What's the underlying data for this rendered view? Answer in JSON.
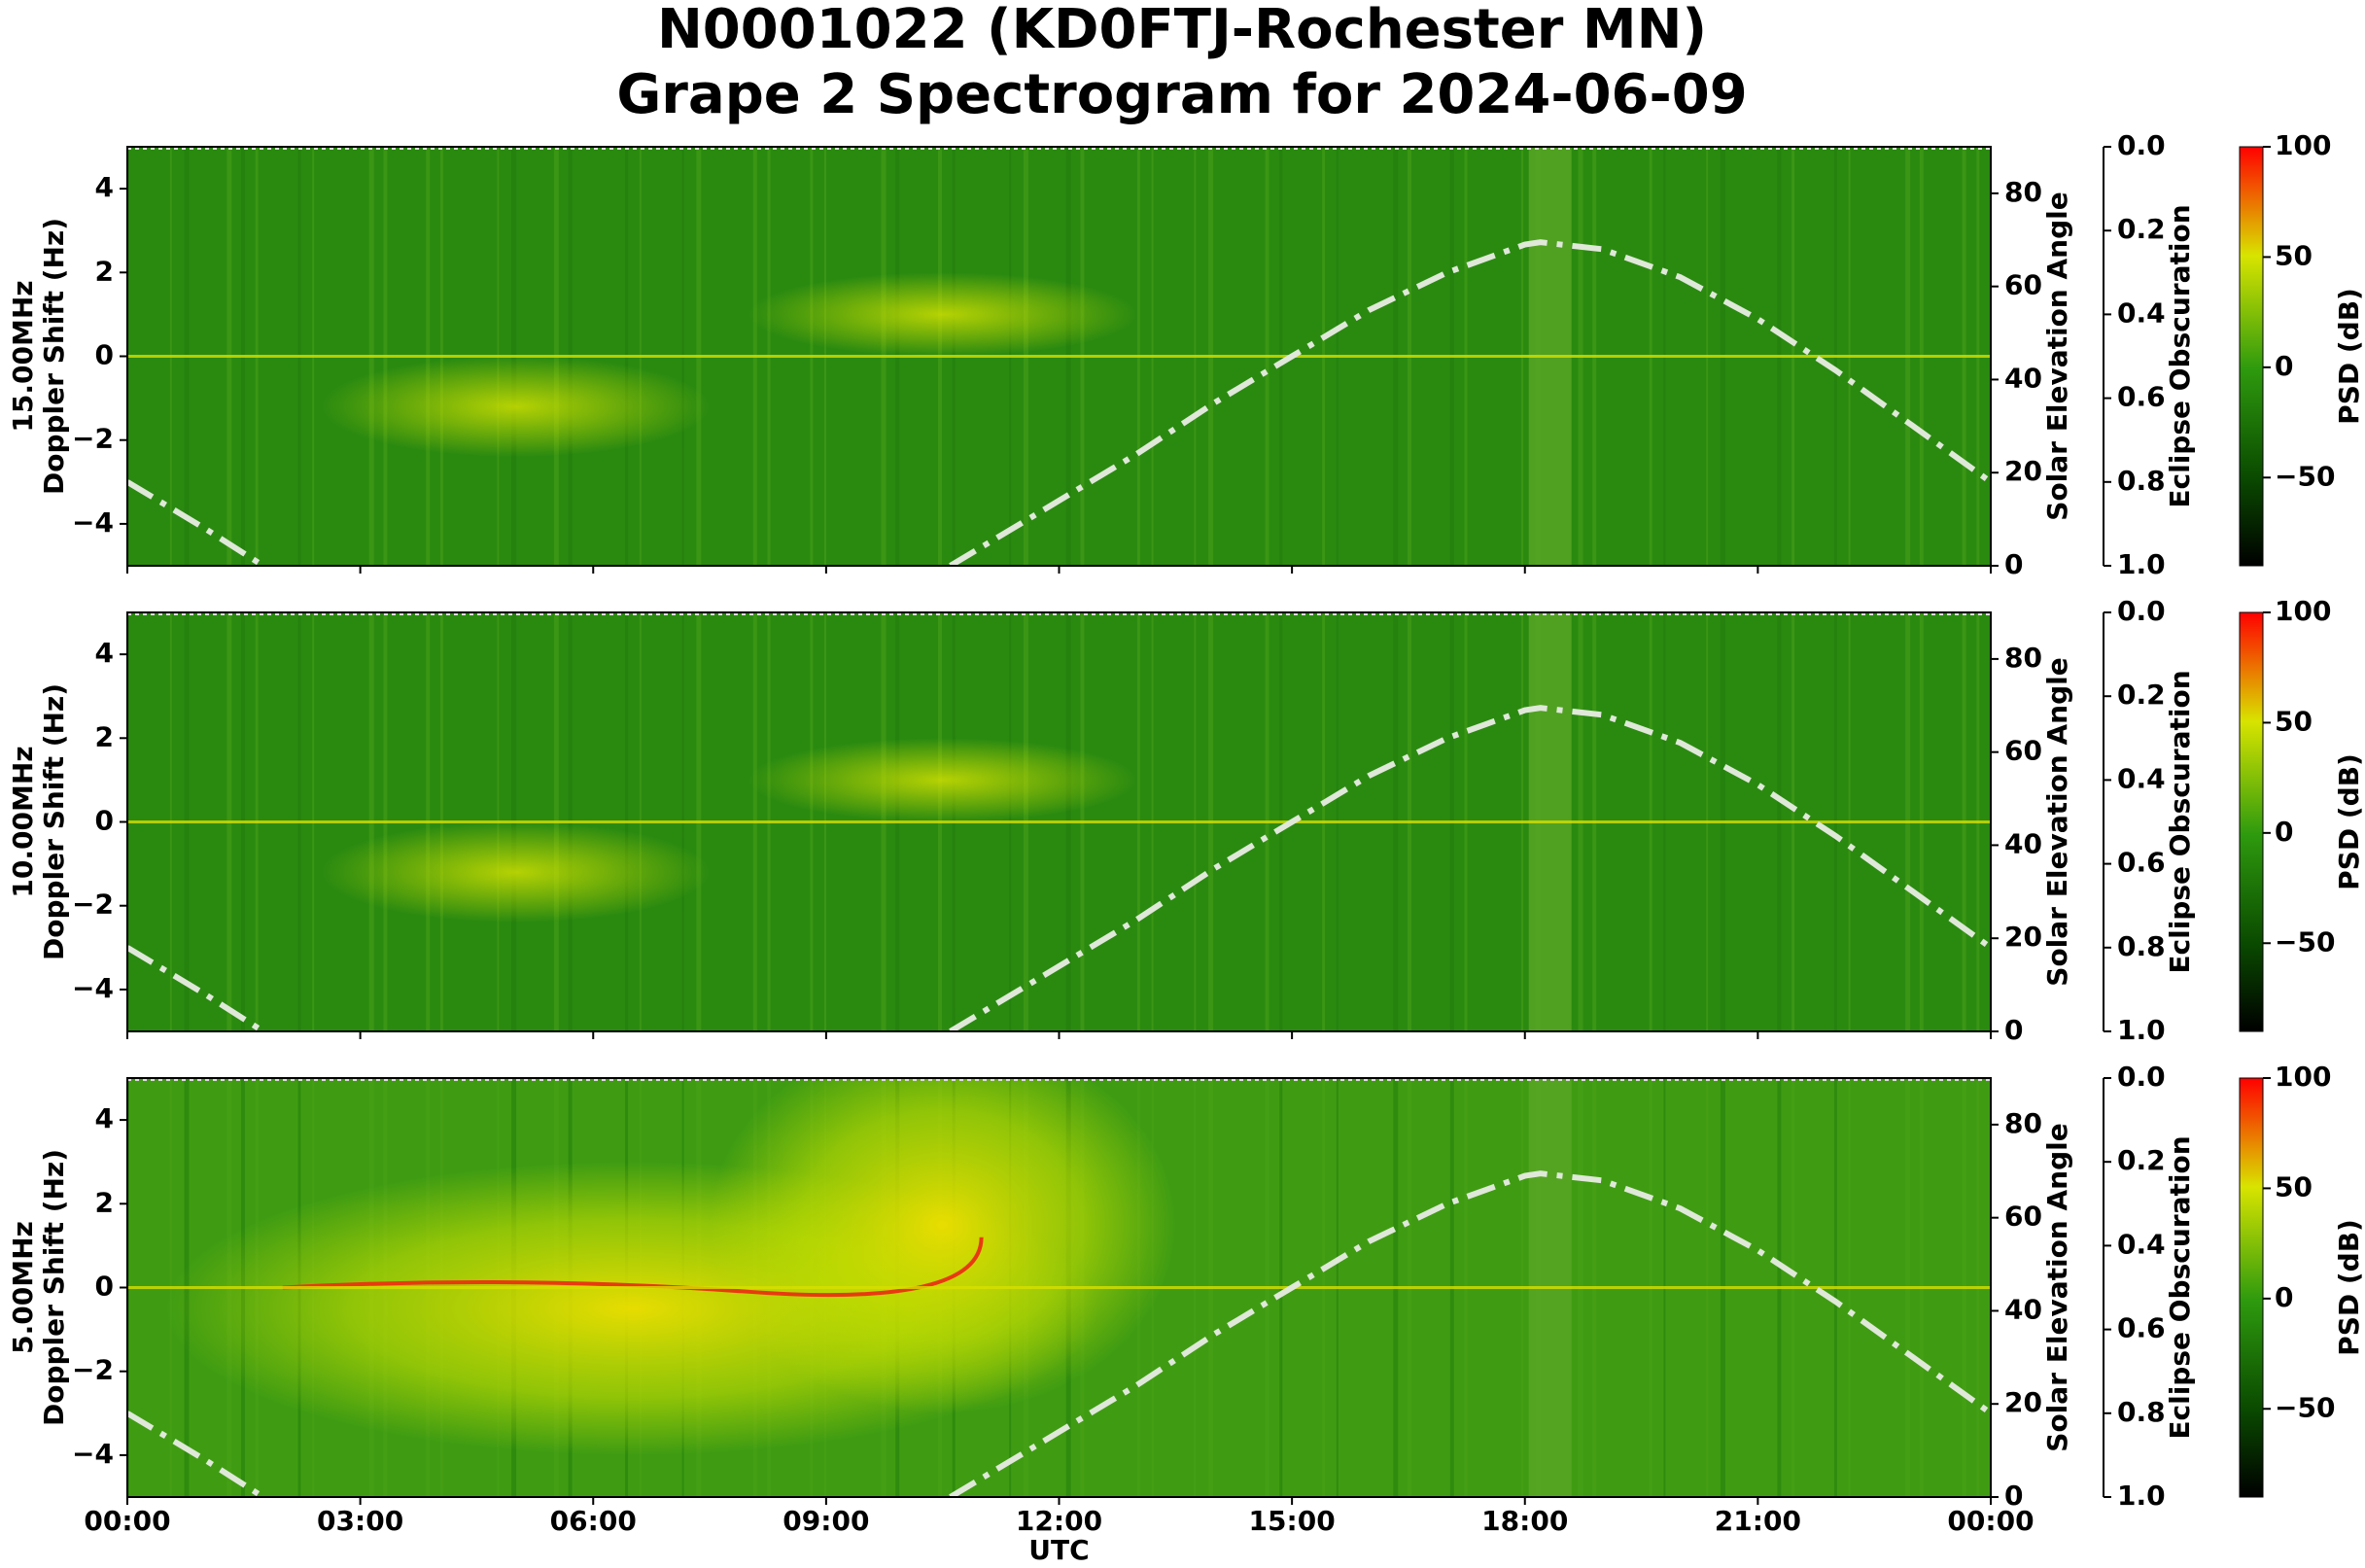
{
  "title": [
    "N0001022 (KD0FTJ-Rochester MN)",
    "Grape 2 Spectrogram for 2024-06-09"
  ],
  "chart_data": [
    {
      "type": "line",
      "ylabel": [
        "15.00MHz",
        "Doppler Shift (Hz)"
      ],
      "xlim": [
        0,
        24
      ],
      "ylim": [
        -5,
        5
      ],
      "yticks": [
        {
          "value": -4,
          "label": "−4"
        },
        {
          "value": -2,
          "label": "−2"
        },
        0,
        2,
        4
      ],
      "y2label": "Solar Elevation Angle",
      "y2lim": [
        0,
        90
      ],
      "y2ticks": [
        0,
        20,
        40,
        60,
        80
      ],
      "y3label": "Eclipse Obscuration",
      "y3lim": [
        1.0,
        0.0
      ],
      "y3ticks": [
        {
          "value": 0.0,
          "label": "0.0"
        },
        {
          "value": 0.2,
          "label": "0.2"
        },
        {
          "value": 0.4,
          "label": "0.4"
        },
        {
          "value": 0.6,
          "label": "0.6"
        },
        {
          "value": 0.8,
          "label": "0.8"
        },
        {
          "value": 1.0,
          "label": "1.0"
        }
      ],
      "colorbar": {
        "label": "PSD (dB)",
        "lim": [
          -90,
          100
        ],
        "ticks": [
          {
            "value": -50,
            "label": "−50"
          },
          0,
          50,
          100
        ]
      },
      "series": [
        {
          "color": "#dfe8d9",
          "axis": "y2",
          "x": [
            0,
            1,
            1.75,
            6,
            10.6,
            12,
            13,
            14,
            15,
            16,
            17,
            18,
            18.2,
            19,
            20,
            21,
            22,
            23,
            24
          ],
          "values": [
            18,
            8,
            0,
            null,
            0,
            14,
            24,
            35,
            45,
            55,
            63,
            69,
            69.5,
            68,
            62,
            53,
            42,
            30,
            18
          ]
        }
      ]
    },
    {
      "type": "line",
      "ylabel": [
        "10.00MHz",
        "Doppler Shift (Hz)"
      ],
      "xlim": [
        0,
        24
      ],
      "ylim": [
        -5,
        5
      ],
      "yticks": [
        {
          "value": -4,
          "label": "−4"
        },
        {
          "value": -2,
          "label": "−2"
        },
        0,
        2,
        4
      ],
      "y2label": "Solar Elevation Angle",
      "y2lim": [
        0,
        90
      ],
      "y2ticks": [
        0,
        20,
        40,
        60,
        80
      ],
      "y3label": "Eclipse Obscuration",
      "y3lim": [
        1.0,
        0.0
      ],
      "y3ticks": [
        {
          "value": 0.0,
          "label": "0.0"
        },
        {
          "value": 0.2,
          "label": "0.2"
        },
        {
          "value": 0.4,
          "label": "0.4"
        },
        {
          "value": 0.6,
          "label": "0.6"
        },
        {
          "value": 0.8,
          "label": "0.8"
        },
        {
          "value": 1.0,
          "label": "1.0"
        }
      ],
      "colorbar": {
        "label": "PSD (dB)",
        "lim": [
          -90,
          100
        ],
        "ticks": [
          {
            "value": -50,
            "label": "−50"
          },
          0,
          50,
          100
        ]
      },
      "series": [
        {
          "color": "#dfe8d9",
          "axis": "y2",
          "x": [
            0,
            1,
            1.75,
            6,
            10.6,
            12,
            13,
            14,
            15,
            16,
            17,
            18,
            18.2,
            19,
            20,
            21,
            22,
            23,
            24
          ],
          "values": [
            18,
            8,
            0,
            null,
            0,
            14,
            24,
            35,
            45,
            55,
            63,
            69,
            69.5,
            68,
            62,
            53,
            42,
            30,
            18
          ]
        }
      ]
    },
    {
      "type": "line",
      "ylabel": [
        "5.00MHz",
        "Doppler Shift (Hz)"
      ],
      "xlabel": "UTC",
      "xlim": [
        0,
        24
      ],
      "xticks": [
        {
          "value": 0,
          "label": "00:00"
        },
        {
          "value": 3,
          "label": "03:00"
        },
        {
          "value": 6,
          "label": "06:00"
        },
        {
          "value": 9,
          "label": "09:00"
        },
        {
          "value": 12,
          "label": "12:00"
        },
        {
          "value": 15,
          "label": "15:00"
        },
        {
          "value": 18,
          "label": "18:00"
        },
        {
          "value": 21,
          "label": "21:00"
        },
        {
          "value": 24,
          "label": "00:00"
        }
      ],
      "ylim": [
        -5,
        5
      ],
      "yticks": [
        {
          "value": -4,
          "label": "−4"
        },
        {
          "value": -2,
          "label": "−2"
        },
        0,
        2,
        4
      ],
      "y2label": "Solar Elevation Angle",
      "y2lim": [
        0,
        90
      ],
      "y2ticks": [
        0,
        20,
        40,
        60,
        80
      ],
      "y3label": "Eclipse Obscuration",
      "y3lim": [
        1.0,
        0.0
      ],
      "y3ticks": [
        {
          "value": 0.0,
          "label": "0.0"
        },
        {
          "value": 0.2,
          "label": "0.2"
        },
        {
          "value": 0.4,
          "label": "0.4"
        },
        {
          "value": 0.6,
          "label": "0.6"
        },
        {
          "value": 0.8,
          "label": "0.8"
        },
        {
          "value": 1.0,
          "label": "1.0"
        }
      ],
      "colorbar": {
        "label": "PSD (dB)",
        "lim": [
          -90,
          100
        ],
        "ticks": [
          {
            "value": -50,
            "label": "−50"
          },
          0,
          50,
          100
        ]
      },
      "series": [
        {
          "color": "#dfe8d9",
          "axis": "y2",
          "x": [
            0,
            1,
            1.75,
            6,
            10.6,
            12,
            13,
            14,
            15,
            16,
            17,
            18,
            18.2,
            19,
            20,
            21,
            22,
            23,
            24
          ],
          "values": [
            18,
            8,
            0,
            null,
            0,
            14,
            24,
            35,
            45,
            55,
            63,
            69,
            69.5,
            68,
            62,
            53,
            42,
            30,
            18
          ]
        }
      ]
    }
  ]
}
